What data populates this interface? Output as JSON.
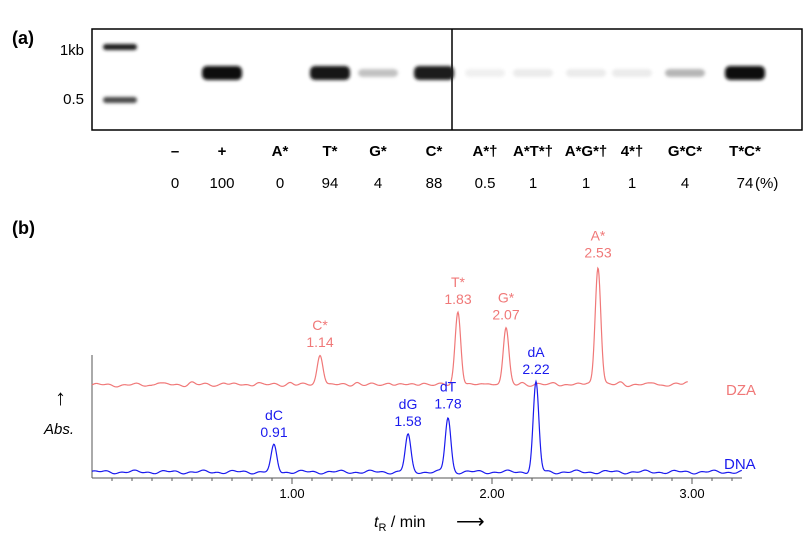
{
  "panel_a": {
    "label": "(a)",
    "marker_labels": [
      "1kb",
      "0.5"
    ],
    "lanes": [
      {
        "label": "–",
        "yield": "0",
        "band": 0
      },
      {
        "label": "+",
        "yield": "100",
        "band": 1.0
      },
      {
        "label": "A*",
        "yield": "0",
        "band": 0
      },
      {
        "label": "T*",
        "yield": "94",
        "band": 0.95
      },
      {
        "label": "G*",
        "yield": "4",
        "band": 0.25
      },
      {
        "label": "C*",
        "yield": "88",
        "band": 0.92
      },
      {
        "label": "A*†",
        "yield": "0.5",
        "band": 0.06
      },
      {
        "label": "A*T*†",
        "yield": "1",
        "band": 0.08
      },
      {
        "label": "A*G*†",
        "yield": "1",
        "band": 0.08
      },
      {
        "label": "4*†",
        "yield": "1",
        "band": 0.08
      },
      {
        "label": "G*C*",
        "yield": "4",
        "band": 0.3
      },
      {
        "label": "T*C*",
        "yield": "74",
        "band": 1.0
      }
    ],
    "unit": "(%)"
  },
  "panel_b": {
    "label": "(b)",
    "chart_data": {
      "type": "line",
      "xlabel_var": "t",
      "xlabel_sub": "R",
      "xlabel_rest": " / min",
      "xlabel_arrow": "⟶",
      "ylabel": "Abs.",
      "ylabel_arrow": "↑",
      "xlim": [
        0.0,
        3.25
      ],
      "xticks": [
        "1.00",
        "2.00",
        "3.00"
      ],
      "xtick_values": [
        1.0,
        2.0,
        3.0
      ],
      "series": [
        {
          "name": "DZA",
          "color": "#f07878",
          "range": [
            0.0,
            2.98
          ],
          "peaks": [
            {
              "label": "C*",
              "value": "1.14",
              "x": 1.14,
              "h": 0.3
            },
            {
              "label": "T*",
              "value": "1.83",
              "x": 1.83,
              "h": 0.74
            },
            {
              "label": "G*",
              "value": "2.07",
              "x": 2.07,
              "h": 0.58
            },
            {
              "label": "A*",
              "value": "2.53",
              "x": 2.53,
              "h": 1.22
            }
          ]
        },
        {
          "name": "DNA",
          "color": "#1a1aee",
          "range": [
            0.0,
            3.25
          ],
          "peaks": [
            {
              "label": "dC",
              "value": "0.91",
              "x": 0.91,
              "h": 0.27
            },
            {
              "label": "dG",
              "value": "1.58",
              "x": 1.58,
              "h": 0.38
            },
            {
              "label": "dT",
              "value": "1.78",
              "x": 1.78,
              "h": 0.56
            },
            {
              "label": "dA",
              "value": "2.22",
              "x": 2.22,
              "h": 0.92
            }
          ]
        }
      ]
    }
  }
}
